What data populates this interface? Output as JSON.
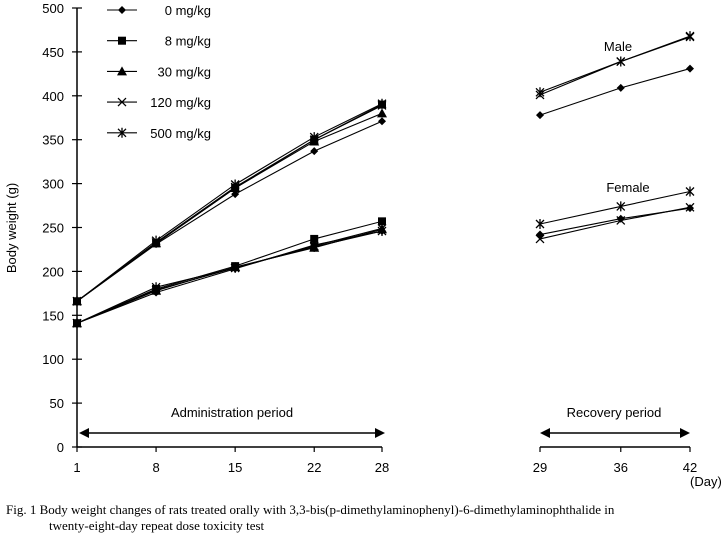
{
  "chart_data": {
    "type": "line",
    "ylabel": "Body weight (g)",
    "xlabel": "(Day)",
    "ylim": [
      0,
      500
    ],
    "yticks": [
      0,
      50,
      100,
      150,
      200,
      250,
      300,
      350,
      400,
      450,
      500
    ],
    "panels": [
      {
        "name": "administration",
        "label": "Administration period",
        "x": [
          1,
          8,
          15,
          22,
          28
        ]
      },
      {
        "name": "recovery",
        "label": "Recovery period",
        "x": [
          29,
          36,
          42
        ]
      }
    ],
    "group_labels": {
      "male": "Male",
      "female": "Female"
    },
    "series": [
      {
        "name": "0 mg/kg",
        "marker": "diamond",
        "male": [
          166,
          231,
          288,
          337,
          371
        ],
        "female": [
          141,
          176,
          203,
          230,
          246
        ],
        "male_recovery": [
          378,
          409,
          431
        ],
        "female_recovery": [
          242,
          260,
          272
        ]
      },
      {
        "name": "8 mg/kg",
        "marker": "square",
        "male": [
          166,
          232,
          295,
          350,
          390
        ],
        "female": [
          141,
          180,
          206,
          237,
          257
        ]
      },
      {
        "name": "30 mg/kg",
        "marker": "triangle",
        "male": [
          166,
          232,
          295,
          348,
          380
        ],
        "female": [
          141,
          178,
          205,
          227,
          248
        ]
      },
      {
        "name": "120 mg/kg",
        "marker": "x",
        "male": [
          166,
          233,
          296,
          350,
          389
        ],
        "female": [
          141,
          179,
          204,
          229,
          249
        ],
        "male_recovery": [
          401,
          439,
          467
        ],
        "female_recovery": [
          237,
          258,
          273
        ]
      },
      {
        "name": "500 mg/kg",
        "marker": "star",
        "male": [
          166,
          235,
          299,
          353,
          391
        ],
        "female": [
          141,
          182,
          204,
          228,
          246
        ],
        "male_recovery": [
          404,
          439,
          468
        ],
        "female_recovery": [
          254,
          274,
          291
        ]
      }
    ]
  },
  "caption": {
    "line1": "Fig. 1  Body weight changes of rats treated orally with 3,3-bis(p-dimethylaminophenyl)-6-dimethylaminophthalide in",
    "line2": "twenty-eight-day repeat dose toxicity test"
  }
}
